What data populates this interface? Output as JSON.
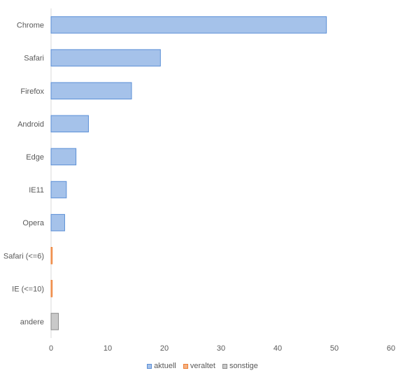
{
  "chart_data": {
    "type": "bar",
    "orientation": "horizontal",
    "categories": [
      "Chrome",
      "Safari",
      "Firefox",
      "Android",
      "Edge",
      "IE11",
      "Opera",
      "Safari (<=6)",
      "IE (<=10)",
      "andere"
    ],
    "series": [
      {
        "name": "aktuell",
        "color": "#a5c2ea",
        "values": [
          48.6,
          19.3,
          14.2,
          6.6,
          4.4,
          2.7,
          2.4,
          null,
          null,
          null
        ]
      },
      {
        "name": "veraltet",
        "color": "#f4b183",
        "values": [
          null,
          null,
          null,
          null,
          null,
          null,
          null,
          0.2,
          0.2,
          null
        ]
      },
      {
        "name": "sonstige",
        "color": "#c9c9c9",
        "values": [
          null,
          null,
          null,
          null,
          null,
          null,
          null,
          null,
          null,
          1.3
        ]
      }
    ],
    "xlim": [
      0,
      60
    ],
    "xticks": [
      "0",
      "10",
      "20",
      "30",
      "40",
      "50",
      "60"
    ],
    "legend_position": "bottom",
    "grid": false
  }
}
